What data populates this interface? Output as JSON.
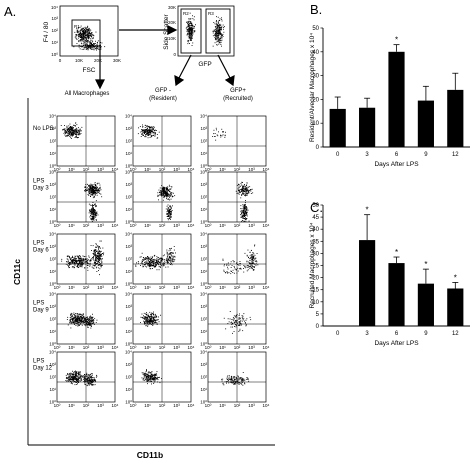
{
  "figure": {
    "panel_labels": [
      "A.",
      "B.",
      "C."
    ],
    "gating": {
      "plot1": {
        "region_label": "R1",
        "ylabel": "F4 / 80",
        "xlabel": "FSC",
        "ticks_x": [
          "0",
          "10K",
          "20K",
          "30K"
        ],
        "ticks_y": [
          "10⁰",
          "10¹",
          "10²",
          "10³",
          "10⁴"
        ]
      },
      "plot2": {
        "region_labels": [
          "R2",
          "R3"
        ],
        "ylabel": "Side Scatter",
        "xlabel": "GFP",
        "ticks_y": [
          "0",
          "10K",
          "20K",
          "30K"
        ]
      }
    },
    "columns": [
      "All Macrophages",
      "GFP -\n(Resident)",
      "GFP+\n(Recruited)"
    ],
    "rows": [
      "No LPS",
      "LPS\nDay 3",
      "LPS\nDay 6",
      "LPS\nDay 9",
      "LPS\nDay 12"
    ],
    "facs_tick_labels": [
      "10⁰",
      "10¹",
      "10²",
      "10³",
      "10⁴"
    ],
    "facs_axis_x": "CD11b",
    "facs_axis_y": "CD11c"
  },
  "chart_data": [
    {
      "type": "bar",
      "panel": "B.",
      "categories": [
        "0",
        "3",
        "6",
        "9",
        "12"
      ],
      "values": [
        16,
        16.5,
        40,
        19.5,
        24
      ],
      "errors": [
        5,
        4,
        3,
        6,
        7
      ],
      "significant": [
        false,
        false,
        true,
        false,
        false
      ],
      "xlabel": "Days After LPS",
      "ylabel": "Resident/Alveolar Macrophages x 10⁴",
      "ylim": [
        0,
        50
      ],
      "yticks": [
        0,
        10,
        20,
        30,
        40,
        50
      ]
    },
    {
      "type": "bar",
      "panel": "C.",
      "categories": [
        "0",
        "3",
        "6",
        "9",
        "12"
      ],
      "values": [
        0.2,
        35.5,
        26,
        17.5,
        15.5
      ],
      "errors": [
        0,
        10.5,
        2.5,
        6,
        2.5
      ],
      "significant": [
        false,
        true,
        true,
        true,
        true
      ],
      "xlabel": "Days After LPS",
      "ylabel": "Recruited Macrophages x 10⁴",
      "ylim": [
        0,
        50
      ],
      "yticks": [
        0,
        5,
        10,
        15,
        20,
        25,
        30,
        35,
        40,
        45,
        50
      ]
    }
  ]
}
